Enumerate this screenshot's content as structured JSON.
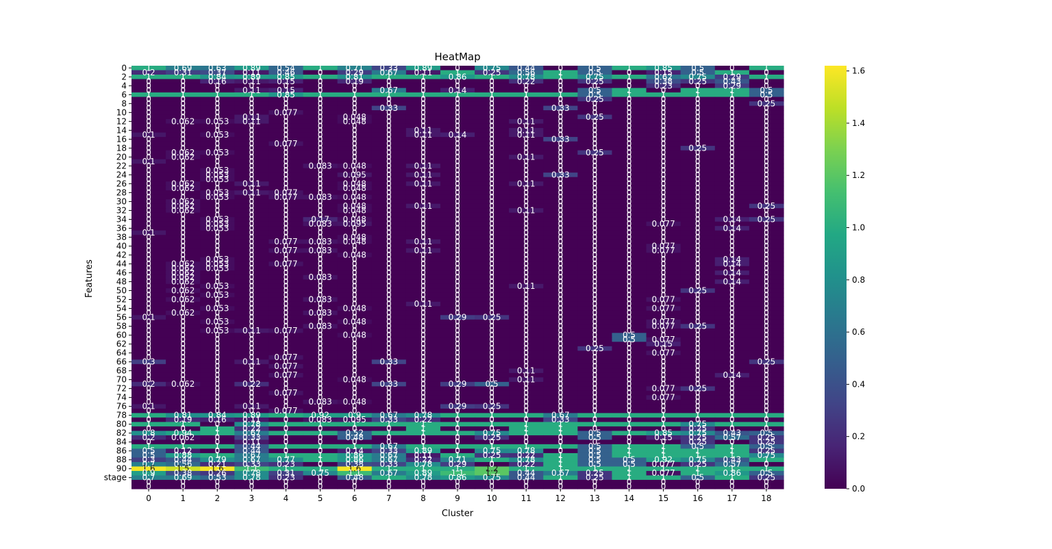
{
  "chart_data": {
    "type": "heatmap",
    "title": "HeatMap",
    "xlabel": "Cluster",
    "ylabel": "Features",
    "colormap": "viridis",
    "colorbar": {
      "min": 0.0,
      "max": 1.62,
      "ticks": [
        "0.0",
        "0.2",
        "0.4",
        "0.6",
        "0.8",
        "1.0",
        "1.2",
        "1.4",
        "1.6"
      ],
      "tick_values": [
        0,
        0.2,
        0.4,
        0.6,
        0.8,
        1.0,
        1.2,
        1.4,
        1.6
      ]
    },
    "x_categories": [
      "0",
      "1",
      "2",
      "3",
      "4",
      "5",
      "6",
      "7",
      "8",
      "9",
      "10",
      "11",
      "12",
      "13",
      "14",
      "15",
      "16",
      "17",
      "18"
    ],
    "y_row_count": 95,
    "y_tick_labels": [
      {
        "row": 0,
        "label": "0"
      },
      {
        "row": 2,
        "label": "2"
      },
      {
        "row": 4,
        "label": "4"
      },
      {
        "row": 6,
        "label": "6"
      },
      {
        "row": 8,
        "label": "8"
      },
      {
        "row": 10,
        "label": "10"
      },
      {
        "row": 12,
        "label": "12"
      },
      {
        "row": 14,
        "label": "14"
      },
      {
        "row": 16,
        "label": "16"
      },
      {
        "row": 18,
        "label": "18"
      },
      {
        "row": 20,
        "label": "20"
      },
      {
        "row": 22,
        "label": "22"
      },
      {
        "row": 24,
        "label": "24"
      },
      {
        "row": 26,
        "label": "26"
      },
      {
        "row": 28,
        "label": "28"
      },
      {
        "row": 30,
        "label": "30"
      },
      {
        "row": 32,
        "label": "32"
      },
      {
        "row": 34,
        "label": "34"
      },
      {
        "row": 36,
        "label": "36"
      },
      {
        "row": 38,
        "label": "38"
      },
      {
        "row": 40,
        "label": "40"
      },
      {
        "row": 42,
        "label": "42"
      },
      {
        "row": 44,
        "label": "44"
      },
      {
        "row": 46,
        "label": "46"
      },
      {
        "row": 48,
        "label": "48"
      },
      {
        "row": 50,
        "label": "50"
      },
      {
        "row": 52,
        "label": "52"
      },
      {
        "row": 54,
        "label": "54"
      },
      {
        "row": 56,
        "label": "56"
      },
      {
        "row": 58,
        "label": "58"
      },
      {
        "row": 60,
        "label": "60"
      },
      {
        "row": 62,
        "label": "62"
      },
      {
        "row": 64,
        "label": "64"
      },
      {
        "row": 66,
        "label": "66"
      },
      {
        "row": 68,
        "label": "68"
      },
      {
        "row": 70,
        "label": "70"
      },
      {
        "row": 72,
        "label": "72"
      },
      {
        "row": 74,
        "label": "74"
      },
      {
        "row": 76,
        "label": "76"
      },
      {
        "row": 78,
        "label": "78"
      },
      {
        "row": 80,
        "label": "80"
      },
      {
        "row": 82,
        "label": "82"
      },
      {
        "row": 84,
        "label": "84"
      },
      {
        "row": 86,
        "label": "86"
      },
      {
        "row": 88,
        "label": "88"
      },
      {
        "row": 90,
        "label": "90"
      },
      {
        "row": 92,
        "label": "stage"
      }
    ],
    "default_value": 0,
    "rows": {
      "0": {
        "0": 1,
        "1": 0.69,
        "2": 0.63,
        "3": 0.89,
        "4": 0.54,
        "5": 1,
        "6": 0.71,
        "7": 0.33,
        "8": 0.89,
        "9": 0,
        "10": 0.75,
        "11": 0.44,
        "12": 0,
        "13": 0.5,
        "14": 1,
        "15": 0.85,
        "16": 0.5,
        "17": 0,
        "18": 1
      },
      "1": {
        "0": 0.2,
        "1": 0.31,
        "2": 0.37,
        "3": 0.11,
        "4": 0.46,
        "5": 0,
        "6": 0.29,
        "7": 0.67,
        "8": 0.11,
        "9": 1,
        "10": 0.25,
        "11": 0.56,
        "12": 1,
        "13": 0.5,
        "14": 0,
        "15": 0.15,
        "16": 0.5,
        "17": 1,
        "18": 0
      },
      "2": {
        "0": 1,
        "1": 1,
        "2": 0.84,
        "3": 0.89,
        "4": 0.85,
        "5": 1,
        "6": 0.81,
        "7": 1,
        "8": 1,
        "9": 0.86,
        "10": 1,
        "11": 0.78,
        "12": 1,
        "13": 0.75,
        "14": 1,
        "15": 0.62,
        "16": 0.75,
        "17": 0.29,
        "18": 1
      },
      "3": {
        "0": 0,
        "1": 0,
        "2": 0.16,
        "3": 0.11,
        "4": 0.15,
        "5": 0,
        "6": 0.19,
        "7": 0,
        "8": 0,
        "9": 0,
        "10": 0,
        "11": 0.22,
        "12": 0,
        "13": 0.25,
        "14": 0,
        "15": 0.38,
        "16": 0.25,
        "17": 0.43,
        "18": 0
      },
      "4": {
        "0": 0,
        "1": 0,
        "2": 0,
        "3": 0,
        "4": 0,
        "5": 0,
        "6": 0,
        "7": 0,
        "8": 0,
        "9": 0,
        "10": 0,
        "11": 0,
        "12": 0,
        "13": 0,
        "14": 0,
        "15": 0.23,
        "16": 0,
        "17": 0.29,
        "18": 0
      },
      "5": {
        "0": 0,
        "1": 0,
        "2": 0,
        "3": 0.11,
        "4": 0.15,
        "5": 0,
        "6": 0,
        "7": 0.67,
        "8": 0,
        "9": 0.14,
        "10": 0,
        "11": 0,
        "12": 0,
        "13": 0.5,
        "14": 1,
        "15": 0,
        "16": 1,
        "17": 1,
        "18": 0.5
      },
      "6": {
        "0": 1,
        "1": 1,
        "2": 1,
        "3": 1,
        "4": 0.85,
        "5": 1,
        "6": 1,
        "7": 1,
        "8": 1,
        "9": 1,
        "10": 1,
        "11": 1,
        "12": 1,
        "13": 0.5,
        "14": 1,
        "15": 1,
        "16": 1,
        "17": 1,
        "18": 0.5
      },
      "7": {
        "0": 0,
        "1": 0,
        "2": 0,
        "3": 0,
        "4": 0,
        "5": 0,
        "6": 0,
        "7": 0,
        "8": 0,
        "9": 0,
        "10": 0,
        "11": 0,
        "12": 0,
        "13": 0.25,
        "14": 0,
        "15": 0,
        "16": 0,
        "17": 0,
        "18": 0
      },
      "8": {
        "18": 0.25
      },
      "9": {
        "7": 0.33,
        "12": 0.33
      },
      "10": {
        "4": 0.077
      },
      "11": {
        "3": 0.11,
        "6": 0.048,
        "13": 0.25
      },
      "12": {
        "1": 0.062,
        "2": 0.053,
        "3": 0.11,
        "6": 0.048,
        "11": 0.11
      },
      "14": {
        "8": 0.11,
        "11": 0.11
      },
      "15": {
        "0": 0.1,
        "2": 0.053,
        "8": 0.11,
        "9": 0.14,
        "11": 0.11
      },
      "16": {
        "12": 0.33
      },
      "17": {
        "4": 0.077
      },
      "18": {
        "16": 0.25
      },
      "19": {
        "1": 0.062,
        "2": 0.053,
        "13": 0.25
      },
      "20": {
        "1": 0.062,
        "11": 0.11
      },
      "21": {
        "0": 0.1
      },
      "22": {
        "5": 0.083,
        "6": 0.048,
        "8": 0.11
      },
      "23": {
        "2": 0.053
      },
      "24": {
        "2": 0.053,
        "6": 0.095,
        "8": 0.11,
        "12": 0.33
      },
      "25": {
        "2": 0.053
      },
      "26": {
        "1": 0.062,
        "3": 0.11,
        "6": 0.048,
        "8": 0.11,
        "11": 0.11
      },
      "27": {
        "1": 0.062,
        "6": 0.048
      },
      "28": {
        "2": 0.053,
        "3": 0.11,
        "4": 0.077
      },
      "29": {
        "2": 0.053,
        "4": 0.077,
        "5": 0.083,
        "6": 0.048
      },
      "30": {
        "1": 0.062
      },
      "31": {
        "1": 0.062,
        "6": 0.048,
        "8": 0.11,
        "18": 0.25
      },
      "32": {
        "1": 0.062,
        "6": 0.048,
        "11": 0.11
      },
      "34": {
        "2": 0.053,
        "5": 0.17,
        "6": 0.048,
        "17": 0.14,
        "18": 0.25
      },
      "35": {
        "2": 0.053,
        "5": 0.083,
        "6": 0.095,
        "15": 0.077
      },
      "36": {
        "2": 0.053,
        "17": 0.14
      },
      "37": {
        "0": 0.1
      },
      "38": {
        "6": 0.048
      },
      "39": {
        "4": 0.077,
        "5": 0.083,
        "6": 0.048,
        "8": 0.11
      },
      "40": {
        "15": 0.077
      },
      "41": {
        "4": 0.077,
        "5": 0.083,
        "8": 0.11,
        "15": 0.077
      },
      "42": {
        "6": 0.048
      },
      "43": {
        "2": 0.053,
        "17": 0.14
      },
      "44": {
        "1": 0.062,
        "2": 0.053,
        "4": 0.077,
        "17": 0.14
      },
      "45": {
        "1": 0.062,
        "2": 0.053
      },
      "46": {
        "1": 0.062,
        "17": 0.14
      },
      "47": {
        "1": 0.062,
        "5": 0.083
      },
      "48": {
        "1": 0.062,
        "17": 0.14
      },
      "49": {
        "2": 0.053,
        "11": 0.11
      },
      "50": {
        "1": 0.062,
        "16": 0.25
      },
      "51": {
        "2": 0.053
      },
      "52": {
        "1": 0.062,
        "5": 0.083,
        "15": 0.077
      },
      "53": {
        "8": 0.11
      },
      "54": {
        "2": 0.053,
        "6": 0.048,
        "15": 0.077
      },
      "55": {
        "1": 0.062,
        "5": 0.083
      },
      "56": {
        "0": 0.1,
        "9": 0.29,
        "10": 0.25
      },
      "57": {
        "2": 0.053,
        "6": 0.048,
        "15": 0.077
      },
      "58": {
        "5": 0.083,
        "15": 0.077,
        "16": 0.25
      },
      "59": {
        "2": 0.053,
        "3": 0.11,
        "4": 0.077
      },
      "60": {
        "6": 0.048,
        "14": 0.5
      },
      "61": {
        "14": 0.5,
        "15": 0.077
      },
      "62": {
        "15": 0.15
      },
      "63": {
        "13": 0.25
      },
      "64": {
        "15": 0.077
      },
      "65": {
        "4": 0.077
      },
      "66": {
        "0": 0.3,
        "3": 0.11,
        "7": 0.33,
        "18": 0.25
      },
      "67": {
        "4": 0.077
      },
      "68": {
        "11": 0.11
      },
      "69": {
        "4": 0.077,
        "17": 0.14
      },
      "70": {
        "6": 0.048,
        "11": 0.11
      },
      "71": {
        "0": 0.2,
        "1": 0.062,
        "3": 0.22,
        "7": 0.33,
        "9": 0.29,
        "10": 0.5
      },
      "72": {
        "15": 0.077,
        "16": 0.25
      },
      "73": {
        "4": 0.077
      },
      "74": {
        "15": 0.077
      },
      "75": {
        "5": 0.083,
        "6": 0.048
      },
      "76": {
        "0": 0.1,
        "3": 0.11,
        "9": 0.29,
        "10": 0.25
      },
      "77": {
        "4": 0.077
      },
      "78": {
        "0": 1,
        "1": 0.81,
        "2": 0.84,
        "3": 0.89,
        "4": 1,
        "5": 0.92,
        "6": 0.9,
        "7": 0.67,
        "8": 0.78,
        "9": 1,
        "10": 1,
        "11": 1,
        "12": 0.67,
        "13": 1,
        "14": 1,
        "15": 1,
        "16": 1,
        "17": 1,
        "18": 1
      },
      "79": {
        "0": 0,
        "1": 0.19,
        "2": 0.16,
        "3": 0.11,
        "4": 0,
        "5": 0.083,
        "6": 0.095,
        "7": 0.33,
        "8": 0.22,
        "9": 0,
        "10": 0,
        "11": 0,
        "12": 0.33,
        "13": 0,
        "14": 0,
        "15": 0,
        "16": 0,
        "17": 0,
        "18": 0
      },
      "80": {
        "0": 1,
        "1": 1,
        "2": 0,
        "3": 0.78,
        "4": 1,
        "5": 1,
        "6": 1,
        "7": 1,
        "8": 1,
        "9": 1,
        "10": 1,
        "11": 1,
        "12": 1,
        "13": 1,
        "14": 1,
        "15": 1,
        "16": 0.75,
        "17": 1,
        "18": 1
      },
      "81": {
        "0": 0,
        "1": 0,
        "2": 1,
        "3": 0.22,
        "4": 0,
        "5": 0,
        "6": 0,
        "7": 0,
        "8": 1,
        "9": 0,
        "10": 0,
        "11": 1,
        "12": 1,
        "13": 0,
        "14": 0,
        "15": 0,
        "16": 0.25,
        "17": 0,
        "18": 0
      },
      "82": {
        "0": 0.8,
        "1": 0.94,
        "2": 1,
        "3": 0.67,
        "4": 1,
        "5": 1,
        "6": 0.52,
        "7": 1,
        "8": 1,
        "9": 1,
        "10": 0.75,
        "11": 1,
        "12": 1,
        "13": 0.5,
        "14": 1,
        "15": 0.85,
        "16": 0.75,
        "17": 0.43,
        "18": 0.5
      },
      "83": {
        "0": 0.2,
        "1": 0.062,
        "2": 0,
        "3": 0.33,
        "4": 0,
        "5": 0,
        "6": 0.48,
        "7": 0,
        "8": 0,
        "9": 0,
        "10": 0.25,
        "11": 0,
        "12": 0,
        "13": 0.5,
        "14": 0,
        "15": 0.15,
        "16": 0.25,
        "17": 0.57,
        "18": 0.25
      },
      "84": {
        "0": 0,
        "1": 0,
        "2": 0,
        "3": 0.11,
        "4": 0,
        "5": 0,
        "6": 0,
        "7": 0,
        "8": 0,
        "9": 0,
        "10": 0,
        "11": 0,
        "12": 0,
        "13": 0,
        "14": 0,
        "15": 0,
        "16": 0.25,
        "17": 0,
        "18": 0.25
      },
      "85": {
        "0": 1,
        "1": 1,
        "2": 1,
        "3": 0.44,
        "4": 1,
        "5": 1,
        "6": 1,
        "7": 0.67,
        "8": 1,
        "9": 1,
        "10": 1,
        "11": 1,
        "12": 1,
        "13": 0.5,
        "14": 1,
        "15": 1,
        "16": 0.5,
        "17": 1,
        "18": 0.5
      },
      "86": {
        "0": 0.5,
        "1": 0.12,
        "2": 0,
        "3": 0.44,
        "4": 0,
        "5": 0,
        "6": 0.14,
        "7": 0.33,
        "8": 0.89,
        "9": 0,
        "10": 0.75,
        "11": 0.78,
        "12": 0,
        "13": 0.5,
        "14": 1,
        "15": 1,
        "16": 1,
        "17": 1,
        "18": 0.25
      },
      "87": {
        "0": 0.5,
        "1": 0.88,
        "2": 1,
        "3": 0.67,
        "4": 1,
        "5": 1,
        "6": 0.86,
        "7": 0.67,
        "8": 0.11,
        "9": 1,
        "10": 0.25,
        "11": 0.22,
        "12": 1,
        "13": 0.5,
        "14": 1,
        "15": 1,
        "16": 1,
        "17": 1,
        "18": 0.75
      },
      "88": {
        "0": 0.3,
        "1": 0.44,
        "2": 0.79,
        "3": 0.67,
        "4": 0.77,
        "5": 1,
        "6": 0.86,
        "7": 0.67,
        "8": 0.22,
        "9": 0.71,
        "10": 1,
        "11": 0.78,
        "12": 1,
        "13": 0.5,
        "14": 0.5,
        "15": 0.92,
        "16": 0.75,
        "17": 0.43,
        "18": 1
      },
      "89": {
        "0": 0.7,
        "1": 0.56,
        "2": 0.21,
        "3": 0.33,
        "4": 0.23,
        "5": 0,
        "6": 0.38,
        "7": 0.33,
        "8": 0.78,
        "9": 0.29,
        "10": 0,
        "11": 0.22,
        "12": 1,
        "13": 0.5,
        "14": 0.5,
        "15": 0.077,
        "16": 0.25,
        "17": 0.57,
        "18": 0
      },
      "90": {
        "0": 1.6,
        "1": 1.5,
        "2": 1.6,
        "3": 1.1,
        "4": 1,
        "5": 1,
        "6": 1.6,
        "7": 1,
        "8": 1,
        "9": 1,
        "10": 1.2,
        "11": 1,
        "12": 1,
        "13": 1,
        "14": 1,
        "15": 1,
        "16": 1,
        "17": 1,
        "18": 1
      },
      "91": {
        "0": 0.9,
        "1": 0.38,
        "2": 0.26,
        "3": 0.78,
        "4": 0.31,
        "5": 0.75,
        "6": 1.1,
        "7": 0.67,
        "8": 0.89,
        "9": 1.1,
        "10": 1.2,
        "11": 0.44,
        "12": 0.67,
        "13": 0.25,
        "14": 1,
        "15": 0.077,
        "16": 1,
        "17": 0.86,
        "18": 0.5
      },
      "92": {
        "0": 0.7,
        "1": 0.69,
        "2": 0.53,
        "3": 0.78,
        "4": 0.23,
        "5": 0,
        "6": 0.48,
        "7": 1,
        "8": 0.78,
        "9": 0.86,
        "10": 0.75,
        "11": 0.44,
        "12": 1,
        "13": 0.25,
        "14": 1,
        "15": 1,
        "16": 0.5,
        "17": 1,
        "18": 0.25
      },
      "93": {}
    }
  }
}
